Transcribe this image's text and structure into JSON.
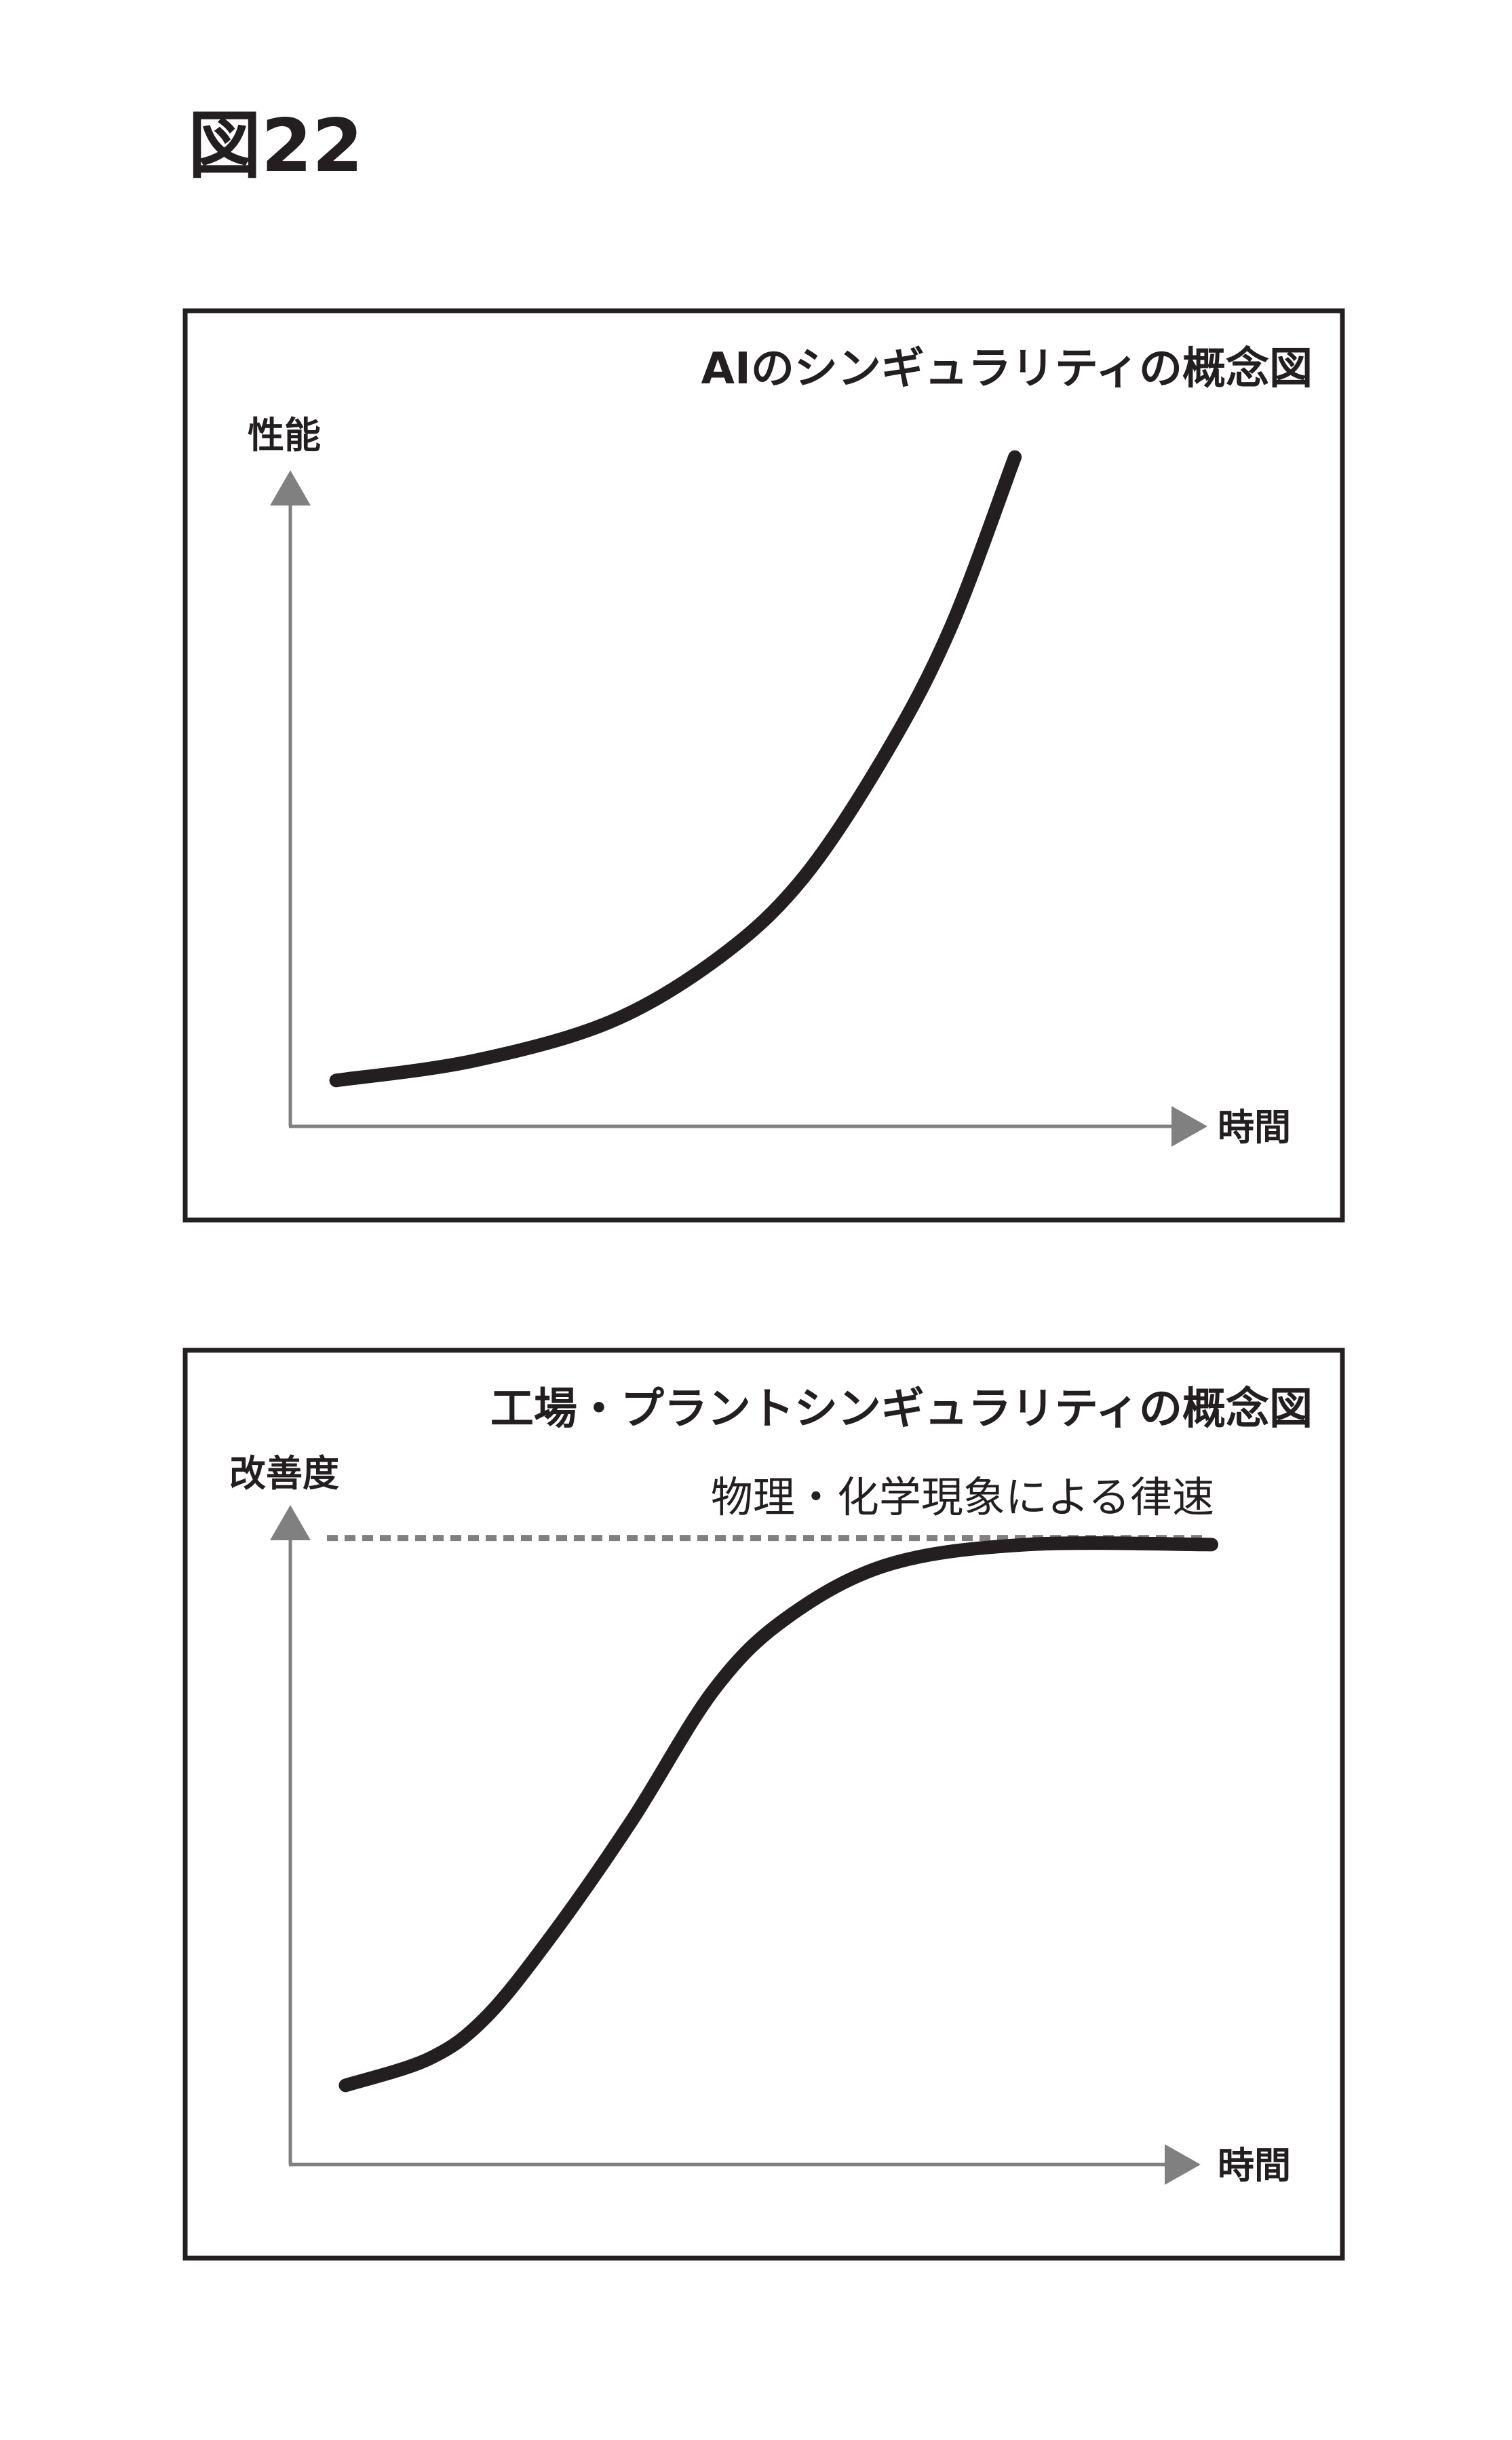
{
  "figure_label": "図22",
  "chart_data": [
    {
      "type": "line",
      "title": "AIのシンギュラリティの概念図",
      "xlabel": "時間",
      "ylabel": "性能",
      "grid": false,
      "ticks": false,
      "series": [
        {
          "x": [
            0.05,
            0.2,
            0.35,
            0.47,
            0.56,
            0.65,
            0.72,
            0.79
          ],
          "y": [
            0.07,
            0.1,
            0.16,
            0.26,
            0.38,
            0.57,
            0.76,
            1.02
          ]
        }
      ],
      "colors": {
        "curve": "#231f20",
        "axis": "#808080",
        "frame": "#231f20"
      }
    },
    {
      "type": "line",
      "title": "工場・プラントシンギュラリティの概念図",
      "xlabel": "時間",
      "ylabel": "改善度",
      "grid": false,
      "ticks": false,
      "series": [
        {
          "x": [
            0.06,
            0.15,
            0.21,
            0.28,
            0.37,
            0.46,
            0.54,
            0.65,
            0.8,
            1.0
          ],
          "y": [
            0.12,
            0.16,
            0.22,
            0.34,
            0.52,
            0.72,
            0.83,
            0.91,
            0.94,
            0.94
          ]
        }
      ],
      "reference_line": {
        "y": 0.95,
        "style": "dashed",
        "label": "物理・化学現象による律速"
      },
      "colors": {
        "curve": "#231f20",
        "axis": "#808080",
        "frame": "#231f20",
        "reference": "#808080"
      }
    }
  ]
}
